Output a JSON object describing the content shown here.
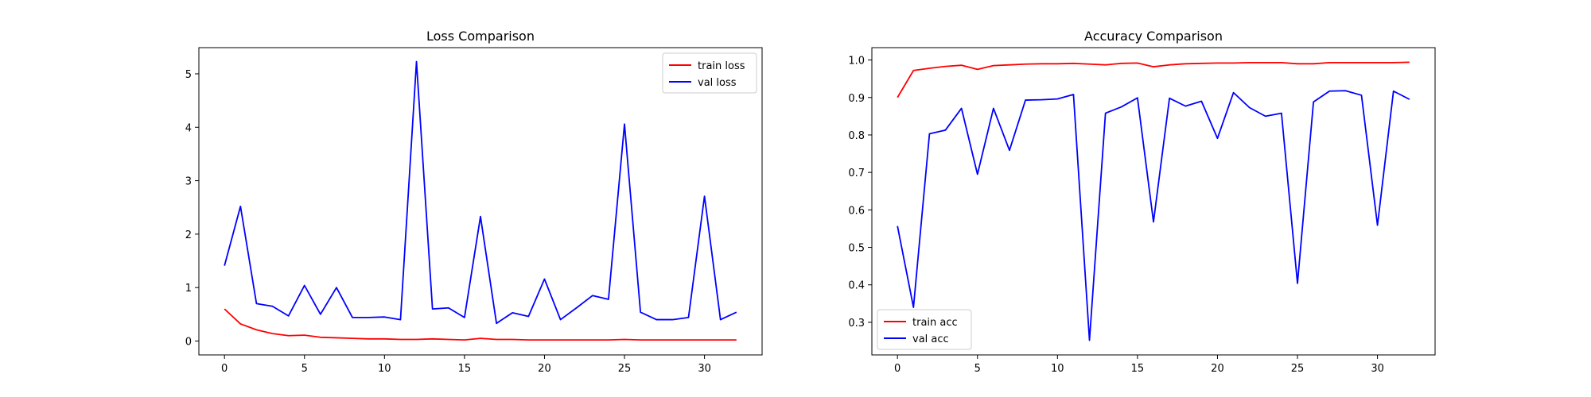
{
  "chart_data": [
    {
      "type": "line",
      "title": "Loss Comparison",
      "xlabel": "",
      "ylabel": "",
      "xlim": [
        -1.6,
        33.6
      ],
      "ylim": [
        -0.26,
        5.49
      ],
      "x_ticks": [
        0,
        5,
        10,
        15,
        20,
        25,
        30
      ],
      "y_ticks": [
        0,
        1,
        2,
        3,
        4,
        5
      ],
      "x_tick_labels": [
        "0",
        "5",
        "10",
        "15",
        "20",
        "25",
        "30"
      ],
      "y_tick_labels": [
        "0",
        "1",
        "2",
        "3",
        "4",
        "5"
      ],
      "grid": false,
      "legend_position": "top-right",
      "x": [
        0,
        1,
        2,
        3,
        4,
        5,
        6,
        7,
        8,
        9,
        10,
        11,
        12,
        13,
        14,
        15,
        16,
        17,
        18,
        19,
        20,
        21,
        22,
        23,
        24,
        25,
        26,
        27,
        28,
        29,
        30,
        31,
        32
      ],
      "series": [
        {
          "name": "train loss",
          "color": "#ff0000",
          "values": [
            0.6,
            0.32,
            0.21,
            0.14,
            0.1,
            0.11,
            0.07,
            0.06,
            0.05,
            0.04,
            0.04,
            0.03,
            0.03,
            0.04,
            0.03,
            0.02,
            0.05,
            0.03,
            0.03,
            0.02,
            0.02,
            0.02,
            0.02,
            0.02,
            0.02,
            0.03,
            0.02,
            0.02,
            0.02,
            0.02,
            0.02,
            0.02,
            0.02
          ]
        },
        {
          "name": "val loss",
          "color": "#0000ff",
          "values": [
            1.41,
            2.52,
            0.7,
            0.65,
            0.47,
            1.04,
            0.5,
            1.0,
            0.44,
            0.44,
            0.45,
            0.4,
            5.23,
            0.6,
            0.62,
            0.44,
            2.33,
            0.33,
            0.53,
            0.46,
            1.16,
            0.4,
            0.62,
            0.85,
            0.78,
            4.06,
            0.54,
            0.4,
            0.4,
            0.44,
            2.71,
            0.4,
            0.54
          ]
        }
      ]
    },
    {
      "type": "line",
      "title": "Accuracy Comparison",
      "xlabel": "",
      "ylabel": "",
      "xlim": [
        -1.6,
        33.6
      ],
      "ylim": [
        0.213,
        1.033
      ],
      "x_ticks": [
        0,
        5,
        10,
        15,
        20,
        25,
        30
      ],
      "y_ticks": [
        0.3,
        0.4,
        0.5,
        0.6,
        0.7,
        0.8,
        0.9,
        1.0
      ],
      "x_tick_labels": [
        "0",
        "5",
        "10",
        "15",
        "20",
        "25",
        "30"
      ],
      "y_tick_labels": [
        "0.3",
        "0.4",
        "0.5",
        "0.6",
        "0.7",
        "0.8",
        "0.9",
        "1.0"
      ],
      "grid": false,
      "legend_position": "bottom-left",
      "x": [
        0,
        1,
        2,
        3,
        4,
        5,
        6,
        7,
        8,
        9,
        10,
        11,
        12,
        13,
        14,
        15,
        16,
        17,
        18,
        19,
        20,
        21,
        22,
        23,
        24,
        25,
        26,
        27,
        28,
        29,
        30,
        31,
        32
      ],
      "series": [
        {
          "name": "train acc",
          "color": "#ff0000",
          "values": [
            0.9,
            0.972,
            0.978,
            0.983,
            0.986,
            0.975,
            0.985,
            0.987,
            0.989,
            0.99,
            0.99,
            0.991,
            0.989,
            0.987,
            0.991,
            0.992,
            0.982,
            0.987,
            0.99,
            0.991,
            0.992,
            0.992,
            0.993,
            0.993,
            0.993,
            0.99,
            0.99,
            0.993,
            0.993,
            0.993,
            0.993,
            0.993,
            0.994
          ]
        },
        {
          "name": "val acc",
          "color": "#0000ff",
          "values": [
            0.557,
            0.34,
            0.803,
            0.813,
            0.871,
            0.695,
            0.871,
            0.759,
            0.893,
            0.894,
            0.896,
            0.908,
            0.252,
            0.858,
            0.875,
            0.899,
            0.568,
            0.898,
            0.877,
            0.89,
            0.791,
            0.913,
            0.873,
            0.85,
            0.858,
            0.404,
            0.888,
            0.917,
            0.918,
            0.906,
            0.559,
            0.917,
            0.895
          ]
        }
      ]
    }
  ]
}
